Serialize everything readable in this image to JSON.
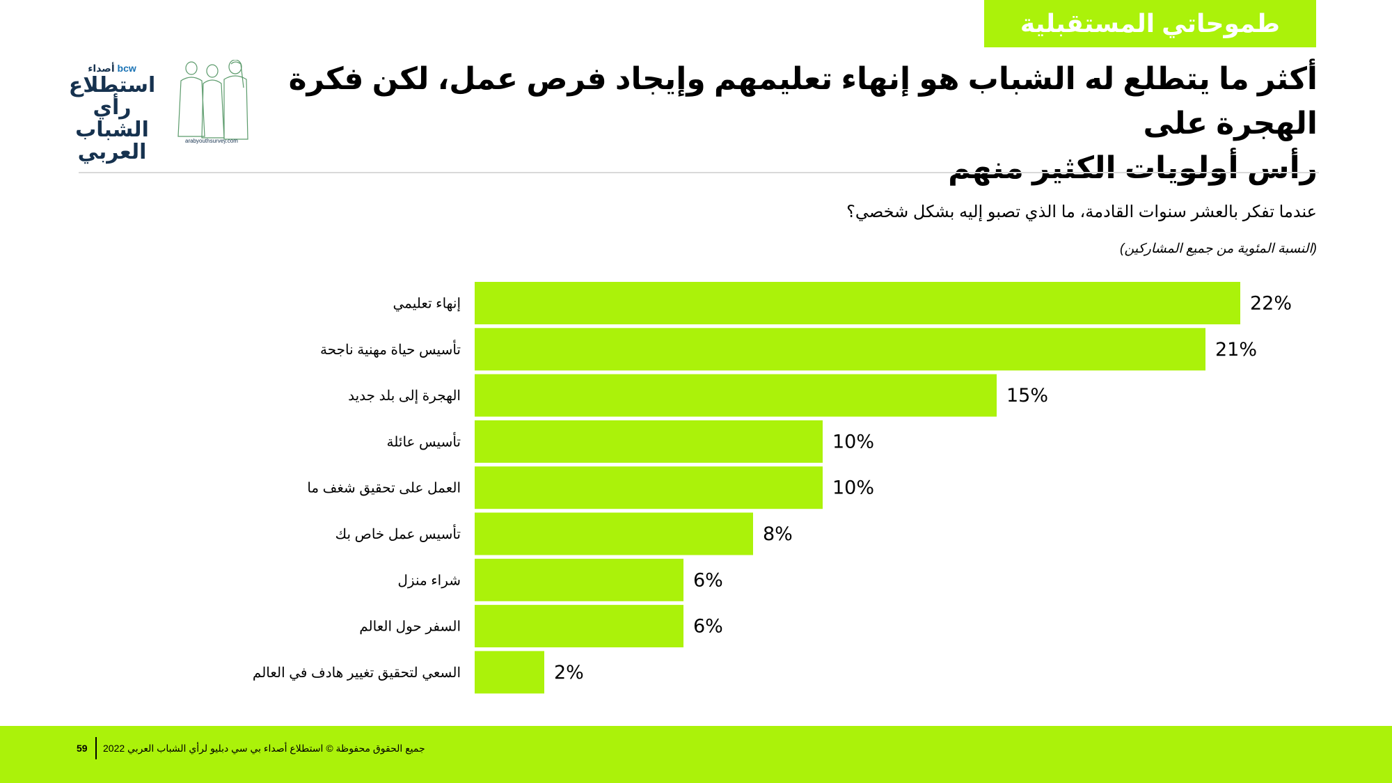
{
  "header": {
    "tag": "طموحاتي المستقبلية",
    "title_line1": "أكثر ما يتطلع له الشباب هو إنهاء تعليمهم وإيجاد فرص عمل، لكن فكرة الهجرة على",
    "title_line2": "رأس أولويات الكثير منهم"
  },
  "logo": {
    "brand_ar": "أصداء",
    "brand_en": "bcw",
    "line1": "استطلاع",
    "line2": "رأي الشباب",
    "line3": "العربي",
    "url": "arabyouthsurvey.com"
  },
  "question": "عندما تفكر بالعشر سنوات القادمة، ما الذي تصبو إليه بشكل شخصي؟",
  "note": "(النسبة المئوية من جميع المشاركين)",
  "chart_data": {
    "type": "bar",
    "orientation": "horizontal",
    "categories": [
      "إنهاء تعليمي",
      "تأسيس حياة مهنية ناجحة",
      "الهجرة إلى بلد جديد",
      "تأسيس عائلة",
      "العمل على تحقيق شغف ما",
      "تأسيس عمل خاص بك",
      "شراء منزل",
      "السفر حول العالم",
      "السعي لتحقيق تغيير هادف في العالم"
    ],
    "values": [
      22,
      21,
      15,
      10,
      10,
      8,
      6,
      6,
      2
    ],
    "value_labels": [
      "22%",
      "21%",
      "15%",
      "10%",
      "10%",
      "8%",
      "6%",
      "6%",
      "2%"
    ],
    "bar_color": "#abf20a",
    "xlim": [
      0,
      22
    ],
    "grid": false,
    "legend": "none"
  },
  "footer": {
    "page": "59",
    "copyright": "جميع الحقوق محفوظة © استطلاع أصداء بي سي دبليو لرأي الشباب العربي 2022"
  },
  "colors": {
    "accent": "#abf20a",
    "logo_navy": "#16324f"
  }
}
